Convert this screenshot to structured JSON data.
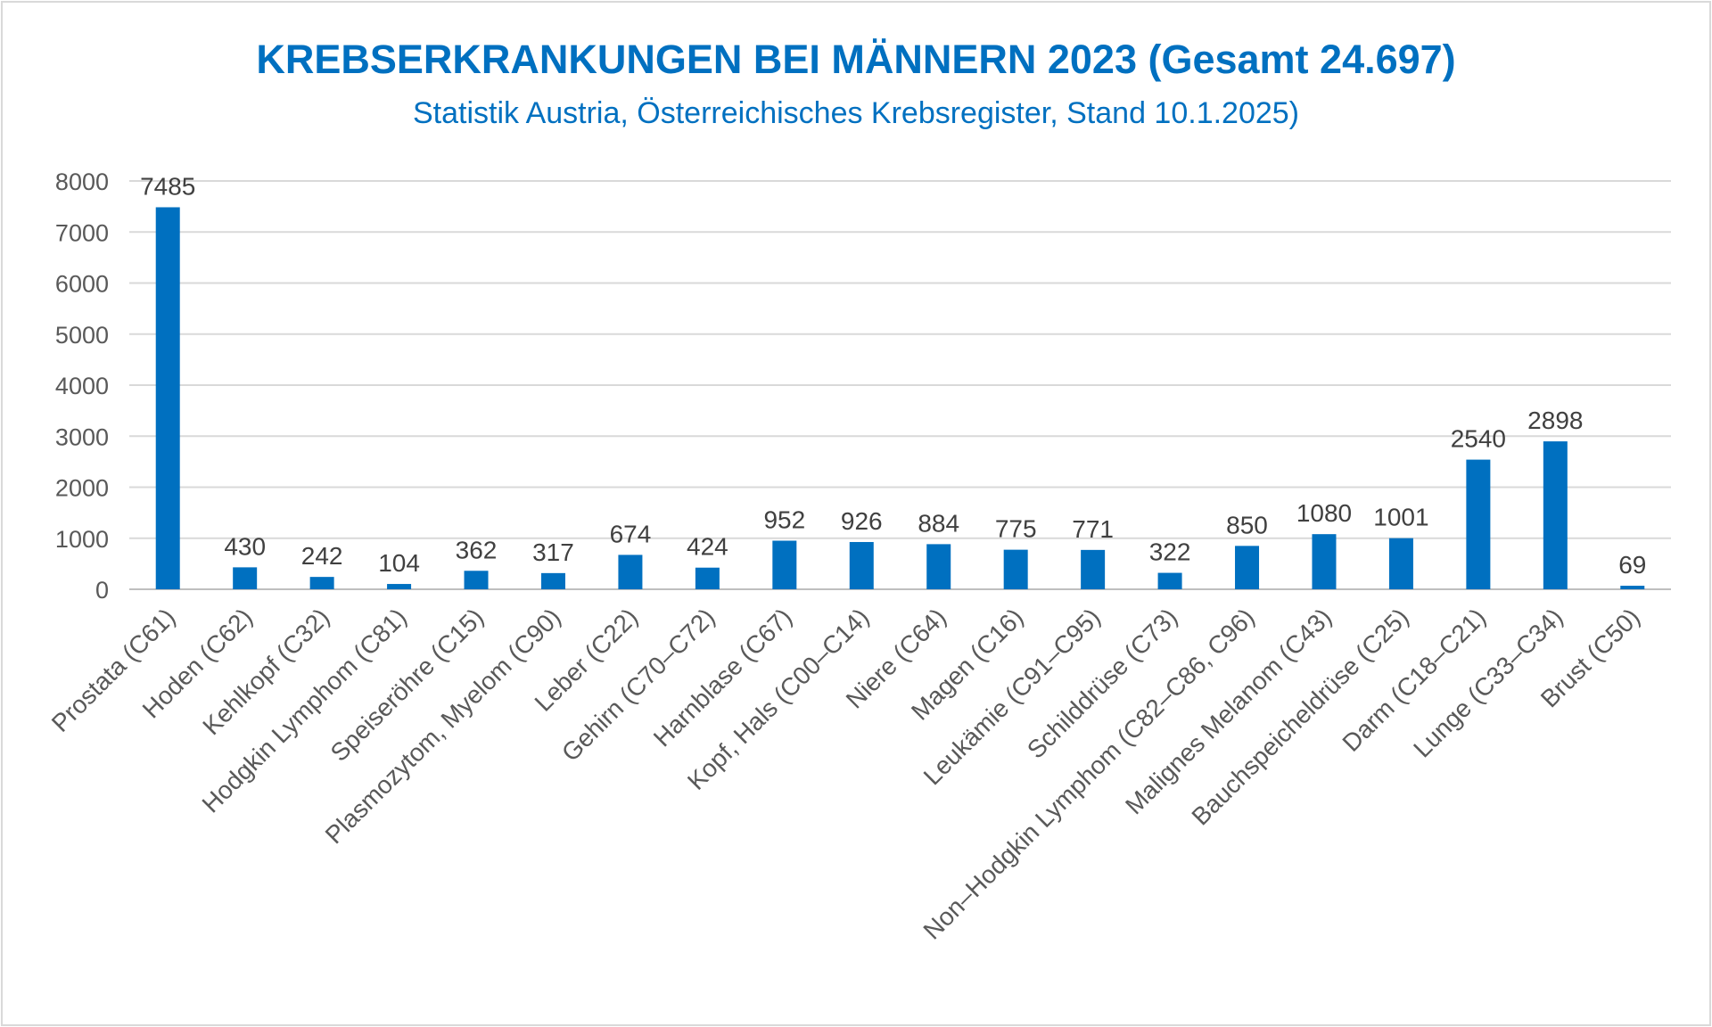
{
  "chart_data": {
    "type": "bar",
    "title": "KREBSERKRANKUNGEN BEI MÄNNERN 2023 (Gesamt 24.697)",
    "subtitle": "Statistik Austria, Österreichisches Krebsregister, Stand 10.1.2025)",
    "xlabel": "",
    "ylabel": "",
    "ylim": [
      0,
      8000
    ],
    "yticks": [
      0,
      1000,
      2000,
      3000,
      4000,
      5000,
      6000,
      7000,
      8000
    ],
    "grid": true,
    "legend": "none",
    "bar_color": "#0070c0",
    "categories": [
      "Prostata (C61)",
      "Hoden (C62)",
      "Kehlkopf (C32)",
      "Hodgkin Lymphom (C81)",
      "Speiseröhre (C15)",
      "Plasmozytom, Myelom (C90)",
      "Leber (C22)",
      "Gehirn (C70–C72)",
      "Harnblase (C67)",
      "Kopf, Hals (C00–C14)",
      "Niere (C64)",
      "Magen (C16)",
      "Leukämie (C91–C95)",
      "Schilddrüse (C73)",
      "Non–Hodgkin Lymphom (C82–C86, C96)",
      "Malignes Melanom (C43)",
      "Bauchspeicheldrüse (C25)",
      "Darm (C18–C21)",
      "Lunge (C33–C34)",
      "Brust (C50)"
    ],
    "values": [
      7485,
      430,
      242,
      104,
      362,
      317,
      674,
      424,
      952,
      926,
      884,
      775,
      771,
      322,
      850,
      1080,
      1001,
      2540,
      2898,
      69
    ]
  }
}
